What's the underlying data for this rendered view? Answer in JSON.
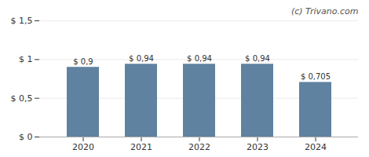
{
  "chart_data": {
    "type": "bar",
    "categories": [
      "2020",
      "2021",
      "2022",
      "2023",
      "2024"
    ],
    "values": [
      0.9,
      0.94,
      0.94,
      0.94,
      0.705
    ],
    "value_labels": [
      "$ 0,9",
      "$ 0,94",
      "$ 0,94",
      "$ 0,94",
      "$ 0,705"
    ],
    "color": "#5f82a0",
    "ylim": [
      0,
      1.5
    ],
    "yticks": [
      {
        "value": 0,
        "label": "$ 0"
      },
      {
        "value": 0.5,
        "label": "$ 0,5"
      },
      {
        "value": 1.0,
        "label": "$ 1"
      },
      {
        "value": 1.5,
        "label": "$ 1,5"
      }
    ],
    "grid": true,
    "data_labels": true,
    "annotations": [
      "(c) Trivano.com"
    ]
  }
}
